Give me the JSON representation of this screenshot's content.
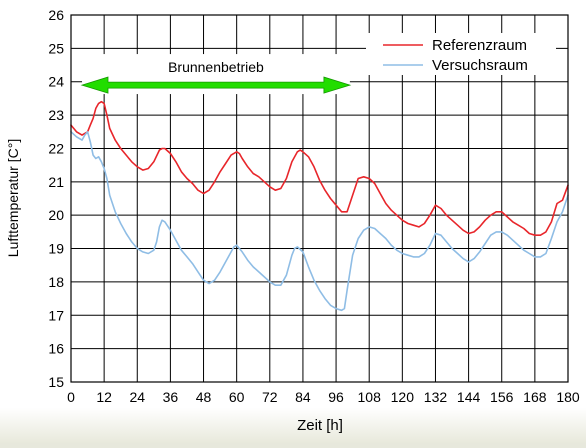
{
  "chart_data": {
    "type": "line",
    "xlabel": "Zeit [h]",
    "ylabel": "Lufttemperatur [C°]",
    "xlim": [
      0,
      180
    ],
    "ylim": [
      15,
      26
    ],
    "xticks": [
      0,
      12,
      24,
      36,
      48,
      60,
      72,
      84,
      96,
      108,
      120,
      132,
      144,
      156,
      168,
      180
    ],
    "yticks": [
      15,
      16,
      17,
      18,
      19,
      20,
      21,
      22,
      23,
      24,
      25,
      26
    ],
    "grid": true,
    "legend_position": "top-right",
    "series": [
      {
        "name": "Referenzraum",
        "color": "#e8262b",
        "x": [
          0,
          2,
          4,
          6,
          7,
          8,
          9,
          10,
          11,
          12,
          13,
          14,
          16,
          18,
          20,
          22,
          24,
          26,
          28,
          30,
          32,
          33,
          34,
          36,
          38,
          40,
          42,
          44,
          46,
          48,
          50,
          52,
          54,
          56,
          58,
          60,
          61,
          62,
          64,
          66,
          68,
          70,
          72,
          74,
          76,
          78,
          80,
          82,
          83,
          84,
          86,
          88,
          90,
          92,
          94,
          96,
          98,
          100,
          102,
          104,
          106,
          108,
          110,
          112,
          114,
          116,
          118,
          120,
          122,
          124,
          126,
          128,
          130,
          132,
          134,
          136,
          138,
          140,
          142,
          144,
          146,
          148,
          150,
          152,
          154,
          156,
          158,
          160,
          162,
          164,
          166,
          168,
          170,
          172,
          174,
          176,
          178,
          180
        ],
        "values": [
          22.7,
          22.5,
          22.4,
          22.5,
          22.7,
          22.9,
          23.2,
          23.35,
          23.4,
          23.35,
          23.0,
          22.6,
          22.25,
          22.0,
          21.8,
          21.6,
          21.45,
          21.35,
          21.4,
          21.6,
          21.95,
          22.0,
          22.0,
          21.85,
          21.6,
          21.3,
          21.1,
          20.95,
          20.75,
          20.65,
          20.75,
          21.0,
          21.3,
          21.55,
          21.8,
          21.9,
          21.85,
          21.7,
          21.45,
          21.25,
          21.15,
          21.0,
          20.85,
          20.75,
          20.8,
          21.1,
          21.6,
          21.9,
          21.95,
          21.9,
          21.75,
          21.45,
          21.05,
          20.75,
          20.5,
          20.3,
          20.1,
          20.1,
          20.6,
          21.1,
          21.15,
          21.1,
          20.95,
          20.65,
          20.35,
          20.15,
          20.0,
          19.85,
          19.75,
          19.7,
          19.65,
          19.75,
          20.0,
          20.3,
          20.2,
          20.0,
          19.85,
          19.7,
          19.55,
          19.45,
          19.5,
          19.65,
          19.85,
          20.0,
          20.1,
          20.1,
          19.95,
          19.8,
          19.7,
          19.6,
          19.45,
          19.4,
          19.4,
          19.5,
          19.8,
          20.35,
          20.45,
          20.9
        ]
      },
      {
        "name": "Versuchsraum",
        "color": "#8fbde5",
        "x": [
          0,
          2,
          4,
          5,
          6,
          7,
          8,
          9,
          10,
          11,
          12,
          13,
          14,
          16,
          18,
          20,
          22,
          24,
          26,
          28,
          30,
          31,
          32,
          33,
          34,
          36,
          38,
          40,
          42,
          44,
          46,
          48,
          50,
          52,
          54,
          56,
          58,
          59,
          60,
          61,
          62,
          64,
          66,
          68,
          70,
          72,
          74,
          76,
          78,
          80,
          81,
          82,
          84,
          86,
          88,
          90,
          92,
          94,
          96,
          98,
          99,
          100,
          102,
          104,
          106,
          108,
          110,
          112,
          114,
          116,
          118,
          120,
          122,
          124,
          126,
          128,
          130,
          132,
          134,
          136,
          138,
          140,
          142,
          144,
          146,
          148,
          150,
          152,
          154,
          156,
          158,
          160,
          162,
          164,
          166,
          168,
          170,
          172,
          174,
          176,
          178,
          180
        ],
        "values": [
          22.5,
          22.35,
          22.25,
          22.4,
          22.5,
          22.2,
          21.8,
          21.7,
          21.75,
          21.6,
          21.4,
          21.1,
          20.6,
          20.1,
          19.75,
          19.45,
          19.2,
          19.0,
          18.9,
          18.85,
          18.95,
          19.2,
          19.65,
          19.85,
          19.8,
          19.55,
          19.25,
          18.95,
          18.75,
          18.55,
          18.3,
          18.05,
          17.95,
          18.05,
          18.3,
          18.6,
          18.9,
          19.05,
          19.1,
          19.0,
          18.9,
          18.65,
          18.45,
          18.3,
          18.15,
          18.0,
          17.9,
          17.9,
          18.2,
          18.8,
          19.0,
          19.05,
          18.9,
          18.45,
          18.05,
          17.75,
          17.5,
          17.3,
          17.2,
          17.15,
          17.2,
          17.75,
          18.8,
          19.3,
          19.55,
          19.65,
          19.6,
          19.45,
          19.3,
          19.1,
          18.95,
          18.85,
          18.8,
          18.75,
          18.75,
          18.85,
          19.1,
          19.45,
          19.4,
          19.2,
          19.0,
          18.85,
          18.7,
          18.6,
          18.7,
          18.9,
          19.15,
          19.4,
          19.5,
          19.5,
          19.4,
          19.25,
          19.1,
          18.95,
          18.85,
          18.75,
          18.75,
          18.85,
          19.3,
          19.8,
          20.1,
          20.6
        ]
      }
    ],
    "annotation": {
      "text": "Brunnenbetrieb",
      "x_start": 4,
      "x_end": 101,
      "y": 23.9,
      "color": "#22dd00"
    }
  }
}
